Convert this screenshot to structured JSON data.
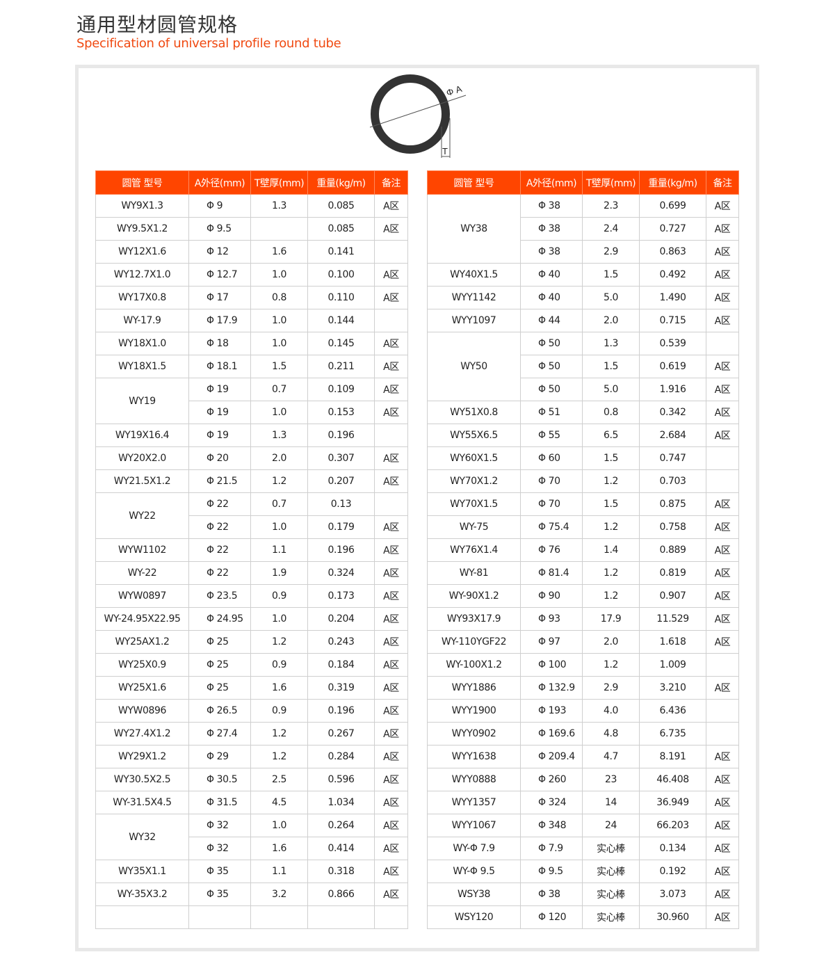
{
  "header": {
    "title": "通用型材圆管规格",
    "subtitle": "Specification of universal profile round tube"
  },
  "diagram": {
    "label_a": "Φ A",
    "label_t": "T"
  },
  "colors": {
    "accent": "#ff4500",
    "subtitle": "#f04a12"
  },
  "columns": [
    "圆管 型号",
    "A外径(mm)",
    "T壁厚(mm)",
    "重量(kg/m)",
    "备注"
  ],
  "left_table": [
    {
      "model": "WY9X1.3",
      "rows": [
        [
          "Φ 9",
          "1.3",
          "0.085",
          "A区"
        ]
      ]
    },
    {
      "model": "WY9.5X1.2",
      "rows": [
        [
          "Φ 9.5",
          "",
          "0.085",
          "A区"
        ]
      ]
    },
    {
      "model": "WY12X1.6",
      "rows": [
        [
          "Φ 12",
          "1.6",
          "0.141",
          ""
        ]
      ]
    },
    {
      "model": "WY12.7X1.0",
      "rows": [
        [
          "Φ 12.7",
          "1.0",
          "0.100",
          "A区"
        ]
      ]
    },
    {
      "model": "WY17X0.8",
      "rows": [
        [
          "Φ 17",
          "0.8",
          "0.110",
          "A区"
        ]
      ]
    },
    {
      "model": "WY-17.9",
      "rows": [
        [
          "Φ 17.9",
          "1.0",
          "0.144",
          ""
        ]
      ]
    },
    {
      "model": "WY18X1.0",
      "rows": [
        [
          "Φ 18",
          "1.0",
          "0.145",
          "A区"
        ]
      ]
    },
    {
      "model": "WY18X1.5",
      "rows": [
        [
          "Φ 18.1",
          "1.5",
          "0.211",
          "A区"
        ]
      ]
    },
    {
      "model": "WY19",
      "rows": [
        [
          "Φ 19",
          "0.7",
          "0.109",
          "A区"
        ],
        [
          "Φ 19",
          "1.0",
          "0.153",
          "A区"
        ]
      ]
    },
    {
      "model": "WY19X16.4",
      "rows": [
        [
          "Φ 19",
          "1.3",
          "0.196",
          ""
        ]
      ]
    },
    {
      "model": "WY20X2.0",
      "rows": [
        [
          "Φ 20",
          "2.0",
          "0.307",
          "A区"
        ]
      ]
    },
    {
      "model": "WY21.5X1.2",
      "rows": [
        [
          "Φ 21.5",
          "1.2",
          "0.207",
          "A区"
        ]
      ]
    },
    {
      "model": "WY22",
      "rows": [
        [
          "Φ 22",
          "0.7",
          "0.13",
          ""
        ],
        [
          "Φ 22",
          "1.0",
          "0.179",
          "A区"
        ]
      ]
    },
    {
      "model": "WYW1102",
      "rows": [
        [
          "Φ 22",
          "1.1",
          "0.196",
          "A区"
        ]
      ]
    },
    {
      "model": "WY-22",
      "rows": [
        [
          "Φ 22",
          "1.9",
          "0.324",
          "A区"
        ]
      ]
    },
    {
      "model": "WYW0897",
      "rows": [
        [
          "Φ 23.5",
          "0.9",
          "0.173",
          "A区"
        ]
      ]
    },
    {
      "model": "WY-24.95X22.95",
      "rows": [
        [
          "Φ 24.95",
          "1.0",
          "0.204",
          "A区"
        ]
      ]
    },
    {
      "model": "WY25AX1.2",
      "rows": [
        [
          "Φ 25",
          "1.2",
          "0.243",
          "A区"
        ]
      ]
    },
    {
      "model": "WY25X0.9",
      "rows": [
        [
          "Φ 25",
          "0.9",
          "0.184",
          "A区"
        ]
      ]
    },
    {
      "model": "WY25X1.6",
      "rows": [
        [
          "Φ 25",
          "1.6",
          "0.319",
          "A区"
        ]
      ]
    },
    {
      "model": "WYW0896",
      "rows": [
        [
          "Φ 26.5",
          "0.9",
          "0.196",
          "A区"
        ]
      ]
    },
    {
      "model": "WY27.4X1.2",
      "rows": [
        [
          "Φ 27.4",
          "1.2",
          "0.267",
          "A区"
        ]
      ]
    },
    {
      "model": "WY29X1.2",
      "rows": [
        [
          "Φ 29",
          "1.2",
          "0.284",
          "A区"
        ]
      ]
    },
    {
      "model": "WY30.5X2.5",
      "rows": [
        [
          "Φ 30.5",
          "2.5",
          "0.596",
          "A区"
        ]
      ]
    },
    {
      "model": "WY-31.5X4.5",
      "rows": [
        [
          "Φ 31.5",
          "4.5",
          "1.034",
          "A区"
        ]
      ]
    },
    {
      "model": "WY32",
      "rows": [
        [
          "Φ 32",
          "1.0",
          "0.264",
          "A区"
        ],
        [
          "Φ 32",
          "1.6",
          "0.414",
          "A区"
        ]
      ]
    },
    {
      "model": "WY35X1.1",
      "rows": [
        [
          "Φ 35",
          "1.1",
          "0.318",
          "A区"
        ]
      ]
    },
    {
      "model": "WY-35X3.2",
      "rows": [
        [
          "Φ 35",
          "3.2",
          "0.866",
          "A区"
        ]
      ]
    },
    {
      "model": "",
      "rows": [
        [
          "",
          "",
          "",
          ""
        ]
      ]
    }
  ],
  "right_table": [
    {
      "model": "WY38",
      "rows": [
        [
          "Φ 38",
          "2.3",
          "0.699",
          "A区"
        ],
        [
          "Φ 38",
          "2.4",
          "0.727",
          "A区"
        ],
        [
          "Φ 38",
          "2.9",
          "0.863",
          "A区"
        ]
      ]
    },
    {
      "model": "WY40X1.5",
      "rows": [
        [
          "Φ 40",
          "1.5",
          "0.492",
          "A区"
        ]
      ]
    },
    {
      "model": "WYY1142",
      "rows": [
        [
          "Φ 40",
          "5.0",
          "1.490",
          "A区"
        ]
      ]
    },
    {
      "model": "WYY1097",
      "rows": [
        [
          "Φ 44",
          "2.0",
          "0.715",
          "A区"
        ]
      ]
    },
    {
      "model": "WY50",
      "rows": [
        [
          "Φ 50",
          "1.3",
          "0.539",
          ""
        ],
        [
          "Φ 50",
          "1.5",
          "0.619",
          "A区"
        ],
        [
          "Φ 50",
          "5.0",
          "1.916",
          "A区"
        ]
      ]
    },
    {
      "model": "WY51X0.8",
      "rows": [
        [
          "Φ 51",
          "0.8",
          "0.342",
          "A区"
        ]
      ]
    },
    {
      "model": "WY55X6.5",
      "rows": [
        [
          "Φ 55",
          "6.5",
          "2.684",
          "A区"
        ]
      ]
    },
    {
      "model": "WY60X1.5",
      "rows": [
        [
          "Φ 60",
          "1.5",
          "0.747",
          ""
        ]
      ]
    },
    {
      "model": "WY70X1.2",
      "rows": [
        [
          "Φ 70",
          "1.2",
          "0.703",
          ""
        ]
      ]
    },
    {
      "model": "WY70X1.5",
      "rows": [
        [
          "Φ 70",
          "1.5",
          "0.875",
          "A区"
        ]
      ]
    },
    {
      "model": "WY-75",
      "rows": [
        [
          "Φ 75.4",
          "1.2",
          "0.758",
          "A区"
        ]
      ]
    },
    {
      "model": "WY76X1.4",
      "rows": [
        [
          "Φ 76",
          "1.4",
          "0.889",
          "A区"
        ]
      ]
    },
    {
      "model": "WY-81",
      "rows": [
        [
          "Φ 81.4",
          "1.2",
          "0.819",
          "A区"
        ]
      ]
    },
    {
      "model": "WY-90X1.2",
      "rows": [
        [
          "Φ 90",
          "1.2",
          "0.907",
          "A区"
        ]
      ]
    },
    {
      "model": "WY93X17.9",
      "rows": [
        [
          "Φ 93",
          "17.9",
          "11.529",
          "A区"
        ]
      ]
    },
    {
      "model": "WY-110YGF22",
      "rows": [
        [
          "Φ 97",
          "2.0",
          "1.618",
          "A区"
        ]
      ]
    },
    {
      "model": "WY-100X1.2",
      "rows": [
        [
          "Φ 100",
          "1.2",
          "1.009",
          ""
        ]
      ]
    },
    {
      "model": "WYY1886",
      "rows": [
        [
          "Φ 132.9",
          "2.9",
          "3.210",
          "A区"
        ]
      ]
    },
    {
      "model": "WYY1900",
      "rows": [
        [
          "Φ 193",
          "4.0",
          "6.436",
          ""
        ]
      ]
    },
    {
      "model": "WYY0902",
      "rows": [
        [
          "Φ 169.6",
          "4.8",
          "6.735",
          ""
        ]
      ]
    },
    {
      "model": "WYY1638",
      "rows": [
        [
          "Φ 209.4",
          "4.7",
          "8.191",
          "A区"
        ]
      ]
    },
    {
      "model": "WYY0888",
      "rows": [
        [
          "Φ 260",
          "23",
          "46.408",
          "A区"
        ]
      ]
    },
    {
      "model": "WYY1357",
      "rows": [
        [
          "Φ 324",
          "14",
          "36.949",
          "A区"
        ]
      ]
    },
    {
      "model": "WYY1067",
      "rows": [
        [
          "Φ 348",
          "24",
          "66.203",
          "A区"
        ]
      ]
    },
    {
      "model": "WY-Φ 7.9",
      "rows": [
        [
          "Φ 7.9",
          "实心棒",
          "0.134",
          "A区"
        ]
      ]
    },
    {
      "model": "WY-Φ 9.5",
      "rows": [
        [
          "Φ 9.5",
          "实心棒",
          "0.192",
          "A区"
        ]
      ]
    },
    {
      "model": "WSY38",
      "rows": [
        [
          "Φ 38",
          "实心棒",
          "3.073",
          "A区"
        ]
      ]
    },
    {
      "model": "WSY120",
      "rows": [
        [
          "Φ 120",
          "实心棒",
          "30.960",
          "A区"
        ]
      ]
    }
  ]
}
